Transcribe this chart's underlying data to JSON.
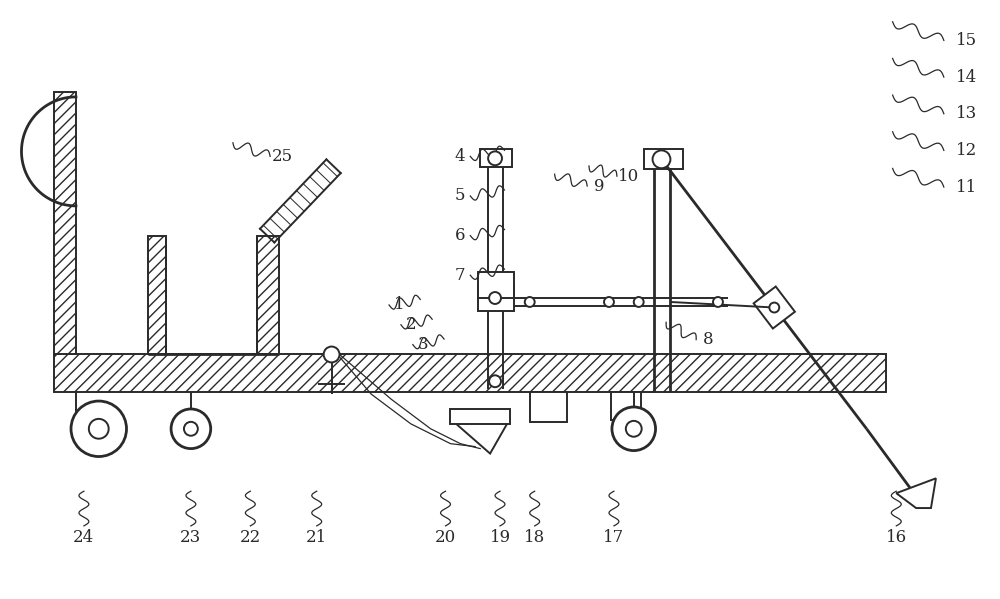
{
  "bg_color": "#ffffff",
  "line_color": "#2a2a2a",
  "lw": 1.4,
  "lw_thin": 0.9,
  "lw_thick": 2.0,
  "fig_width": 10.0,
  "fig_height": 5.99
}
